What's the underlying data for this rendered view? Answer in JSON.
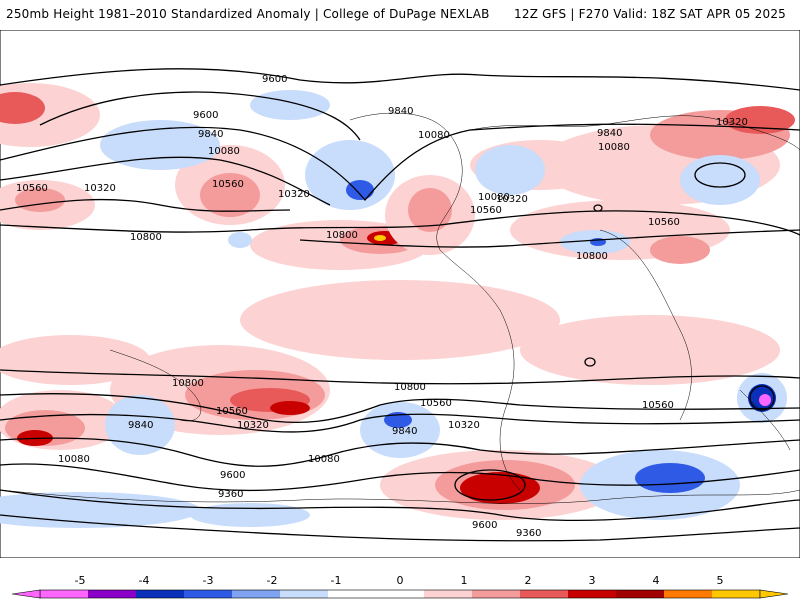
{
  "header": {
    "left_title": "250mb Height 1981–2010 Standardized Anomaly | College of DuPage NEXLAB",
    "right_title": "12Z GFS | F270 Valid: 18Z SAT APR 05 2025"
  },
  "map": {
    "contour_labels": [
      "9600",
      "9600",
      "9840",
      "9840",
      "10080",
      "10080",
      "10080",
      "10320",
      "10320",
      "10320",
      "10560",
      "10560",
      "10560",
      "10800",
      "10800",
      "9840",
      "10080",
      "10320",
      "10560",
      "10800",
      "10560",
      "10800",
      "9600",
      "9360",
      "9360",
      "9840",
      "9600",
      "10080",
      "10320",
      "10560",
      "10800",
      "9840",
      "10080",
      "10320",
      "10560"
    ],
    "contour_color": "#000000"
  },
  "colorbar": {
    "ticks": [
      "-5",
      "-4",
      "-3",
      "-2",
      "-1",
      "0",
      "1",
      "2",
      "3",
      "4",
      "5"
    ],
    "colors": [
      "#ff66ff",
      "#8a00c8",
      "#0a2fb8",
      "#2e5ae6",
      "#7fa3f0",
      "#c8dcfb",
      "#ffffff",
      "#ffffff",
      "#fcd2d2",
      "#f49c9c",
      "#e85a5a",
      "#c80000",
      "#a00000",
      "#ff7a00",
      "#ffc800"
    ]
  }
}
